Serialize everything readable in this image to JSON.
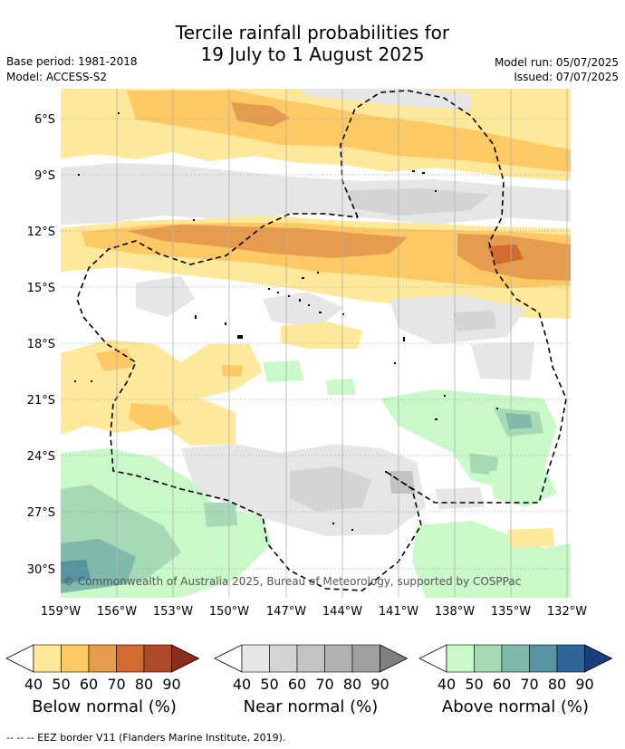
{
  "title": {
    "line1": "Tercile rainfall probabilities for",
    "line2": "19 July to 1 August 2025"
  },
  "meta": {
    "base_period": "Base period: 1981-2018",
    "model": "Model: ACCESS-S2",
    "model_run": "Model run: 05/07/2025",
    "issued": "Issued: 07/07/2025"
  },
  "map": {
    "lat_labels": [
      "6°S",
      "9°S",
      "12°S",
      "15°S",
      "18°S",
      "21°S",
      "24°S",
      "27°S",
      "30°S"
    ],
    "lon_labels": [
      "159°W",
      "156°W",
      "153°W",
      "150°W",
      "147°W",
      "144°W",
      "141°W",
      "138°W",
      "135°W",
      "132°W"
    ],
    "copyright": "© Commonwealth of Australia 2025, Bureau of Meteorology, supported by COSPPac"
  },
  "colorbars": [
    {
      "label": "Below normal (%)",
      "ticks": [
        "40",
        "50",
        "60",
        "70",
        "80",
        "90"
      ],
      "colors": [
        "#fee89a",
        "#fdc964",
        "#e69c4f",
        "#d26a31",
        "#b0492a",
        "#8b2e1d"
      ]
    },
    {
      "label": "Near normal (%)",
      "ticks": [
        "40",
        "50",
        "60",
        "70",
        "80",
        "90"
      ],
      "colors": [
        "#e6e6e6",
        "#d4d4d4",
        "#c3c3c3",
        "#b2b2b2",
        "#a0a0a0",
        "#808080"
      ]
    },
    {
      "label": "Above normal (%)",
      "ticks": [
        "40",
        "50",
        "60",
        "70",
        "80",
        "90"
      ],
      "colors": [
        "#c9f8c9",
        "#a6dab5",
        "#7fb9ac",
        "#5694a3",
        "#2f6599",
        "#1a3f7a"
      ]
    }
  ],
  "footer": {
    "eez": "--  --  -- EEZ border V11 (Flanders Marine Institute, 2019)."
  }
}
